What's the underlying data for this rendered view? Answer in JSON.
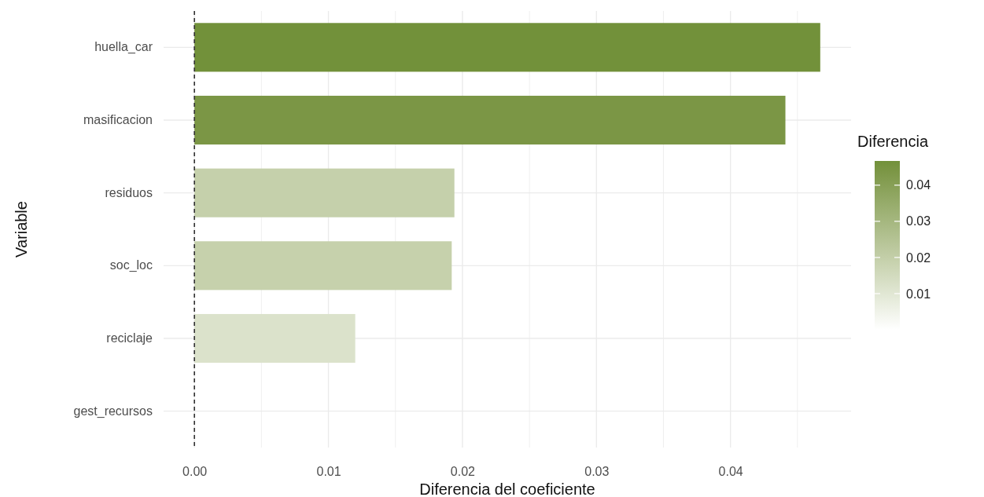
{
  "chart_data": {
    "type": "bar",
    "orientation": "horizontal",
    "xlabel": "Diferencia del coeficiente",
    "ylabel": "Variable",
    "clabel": "Diferencia",
    "categories": [
      "huella_car",
      "masificacion",
      "residuos",
      "soc_loc",
      "reciclaje",
      "gest_recursos"
    ],
    "values": [
      0.0467,
      0.0441,
      0.0194,
      0.0192,
      0.012,
      0
    ],
    "colors": [
      "#72913a",
      "#7b9645",
      "#c5d0ab",
      "#c6d1ac",
      "#dbe2cb",
      "#ffffff"
    ],
    "xlim": [
      -0.0023,
      0.049
    ],
    "xticks": [
      {
        "value": 0,
        "label": "0.00"
      },
      {
        "value": 0.005,
        "label": null
      },
      {
        "value": 0.01,
        "label": "0.01"
      },
      {
        "value": 0.015,
        "label": null
      },
      {
        "value": 0.02,
        "label": "0.02"
      },
      {
        "value": 0.025,
        "label": null
      },
      {
        "value": 0.03,
        "label": "0.03"
      },
      {
        "value": 0.035,
        "label": null
      },
      {
        "value": 0.04,
        "label": "0.04"
      },
      {
        "value": 0.045,
        "label": null
      }
    ],
    "clim": [
      0,
      0.0467
    ],
    "cticks": [
      0.01,
      0.02,
      0.03,
      0.04
    ],
    "ref_lines": [
      {
        "axis": "x",
        "value": 0,
        "line_style": "dashed",
        "color": "#333333"
      }
    ],
    "grid": true
  }
}
